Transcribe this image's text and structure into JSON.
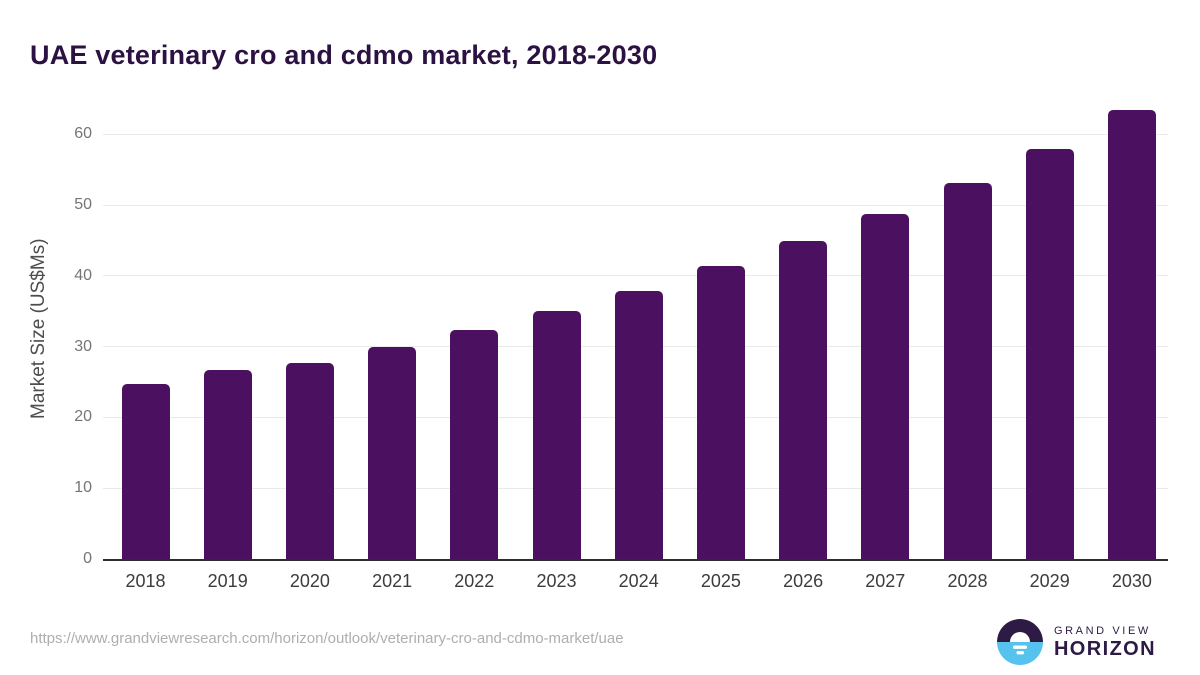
{
  "header": {
    "title": "UAE veterinary cro and cdmo market, 2018-2030"
  },
  "chart_data": {
    "type": "bar",
    "title": "UAE veterinary cro and cdmo market, 2018-2030",
    "categories": [
      "2018",
      "2019",
      "2020",
      "2021",
      "2022",
      "2023",
      "2024",
      "2025",
      "2026",
      "2027",
      "2028",
      "2029",
      "2030"
    ],
    "values": [
      24.8,
      26.7,
      27.7,
      29.9,
      32.3,
      35.0,
      37.9,
      41.4,
      44.9,
      48.8,
      53.2,
      58.0,
      63.4
    ],
    "xlabel": "",
    "ylabel": "Market Size (US$Ms)",
    "ylim": [
      0,
      65
    ],
    "yticks": [
      0,
      10,
      20,
      30,
      40,
      50,
      60
    ],
    "grid": true,
    "legend": "none",
    "bar_color": "#4b105f"
  },
  "colors": {
    "title": "#2b1243",
    "bar": "#4b105f",
    "gridline": "#eaeaea",
    "axis_line": "#2d2d2d",
    "ytick_text": "#757575",
    "xtick_text": "#3c3c3c",
    "url_text": "#aeaeae",
    "logo_purple": "#2d1b45",
    "logo_blue": "#56c3ef"
  },
  "footer": {
    "source_url": "https://www.grandviewresearch.com/horizon/outlook/veterinary-cro-and-cdmo-market/uae",
    "logo": {
      "line1": "GRAND VIEW",
      "line2": "HORIZON"
    }
  }
}
